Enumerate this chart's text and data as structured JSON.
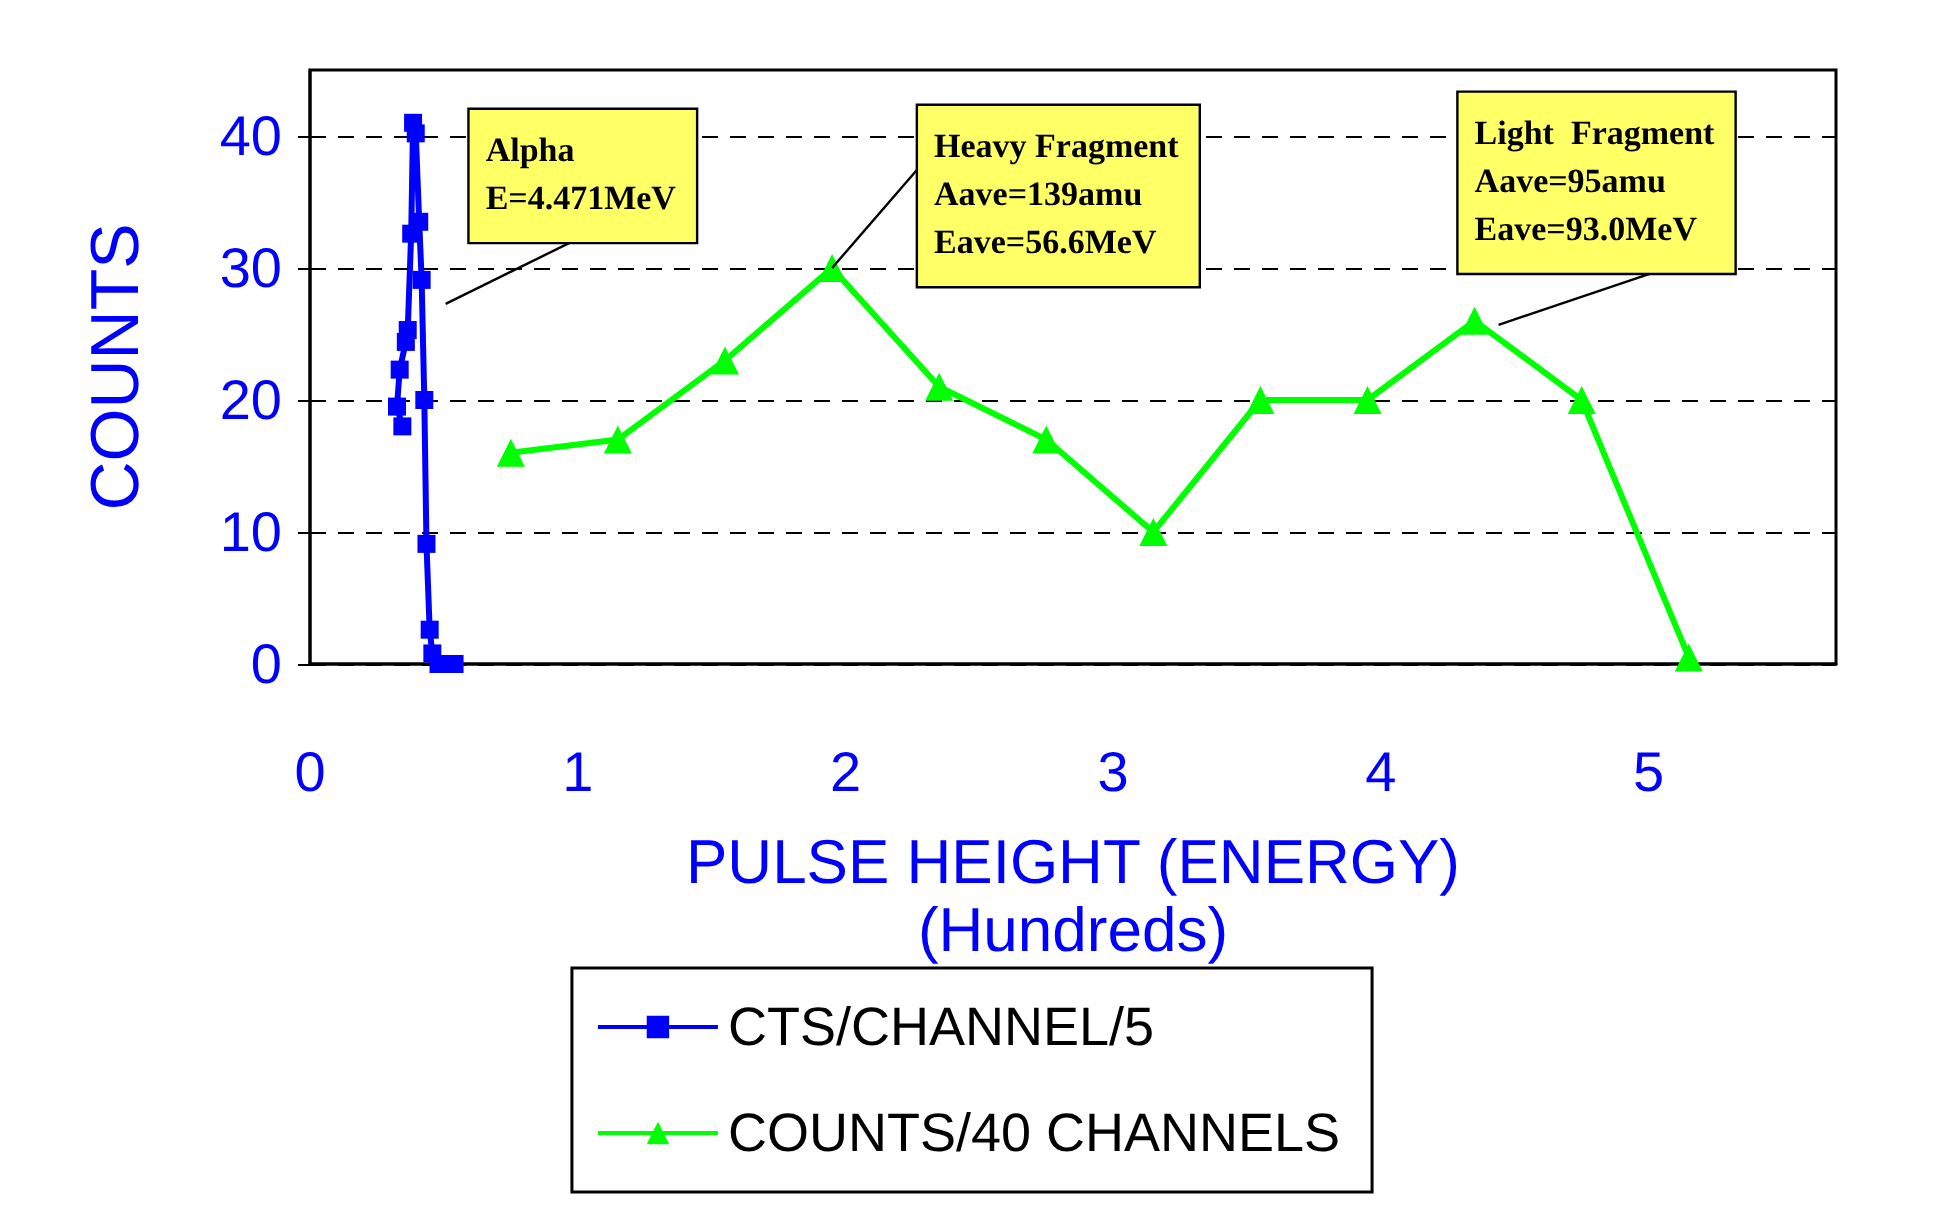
{
  "chart_data": {
    "type": "line",
    "xlabel": "PULSE HEIGHT (ENERGY)\n(Hundreds)",
    "ylabel": "COUNTS",
    "xlim": [
      0,
      5.7
    ],
    "xticks": [
      0,
      1,
      2,
      3,
      4,
      5
    ],
    "ylim": [
      0,
      45
    ],
    "yticks": [
      0,
      10,
      20,
      30,
      40
    ],
    "grid": "y",
    "legend": "bottom",
    "line_style": "solid",
    "series": [
      {
        "name": "CTS/CHANNEL/5",
        "color": "#0000ff",
        "marker": "square",
        "x": [
          0.345,
          0.325,
          0.335,
          0.358,
          0.365,
          0.378,
          0.385,
          0.395,
          0.408,
          0.417,
          0.427,
          0.435,
          0.447,
          0.457,
          0.48,
          0.54
        ],
        "values": [
          18.0,
          19.5,
          22.3,
          24.4,
          25.3,
          32.6,
          41.0,
          40.2,
          33.5,
          29.1,
          20.0,
          9.1,
          2.6,
          0.8,
          0.0,
          0.0
        ]
      },
      {
        "name": "COUNTS/40 CHANNELS",
        "color": "#00ff00",
        "marker": "triangle",
        "x": [
          0.75,
          1.15,
          1.55,
          1.95,
          2.35,
          2.75,
          3.15,
          3.55,
          3.95,
          4.35,
          4.75,
          5.15
        ],
        "values": [
          16,
          17,
          23,
          30,
          21,
          17,
          10,
          20,
          20,
          26,
          20,
          0.5
        ]
      }
    ],
    "annotations": [
      {
        "text": "Alpha\nE=4.471MeV",
        "x": 0.417,
        "y": 29.1
      },
      {
        "text": "Heavy Fragment\nAave=139amu\nEave=56.6MeV",
        "x": 1.95,
        "y": 30
      },
      {
        "text": "Light  Fragment\nAave=95amu\nEave=93.0MeV",
        "x": 4.35,
        "y": 26
      }
    ]
  }
}
